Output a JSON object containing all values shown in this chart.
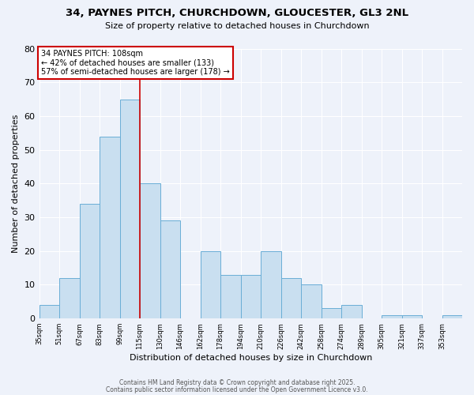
{
  "title": "34, PAYNES PITCH, CHURCHDOWN, GLOUCESTER, GL3 2NL",
  "subtitle": "Size of property relative to detached houses in Churchdown",
  "xlabel": "Distribution of detached houses by size in Churchdown",
  "ylabel": "Number of detached properties",
  "footer_line1": "Contains HM Land Registry data © Crown copyright and database right 2025.",
  "footer_line2": "Contains public sector information licensed under the Open Government Licence v3.0.",
  "bin_labels": [
    "35sqm",
    "51sqm",
    "67sqm",
    "83sqm",
    "99sqm",
    "115sqm",
    "130sqm",
    "146sqm",
    "162sqm",
    "178sqm",
    "194sqm",
    "210sqm",
    "226sqm",
    "242sqm",
    "258sqm",
    "274sqm",
    "289sqm",
    "305sqm",
    "321sqm",
    "337sqm",
    "353sqm"
  ],
  "bar_values": [
    4,
    12,
    34,
    54,
    65,
    40,
    29,
    0,
    20,
    13,
    13,
    20,
    12,
    10,
    3,
    4,
    0,
    1,
    1,
    0,
    1
  ],
  "bar_color": "#c9dff0",
  "bar_edge_color": "#6aaed6",
  "background_color": "#eef2fa",
  "grid_color": "#ffffff",
  "vline_x": 5,
  "vline_color": "#cc0000",
  "annotation_title": "34 PAYNES PITCH: 108sqm",
  "annotation_line1": "← 42% of detached houses are smaller (133)",
  "annotation_line2": "57% of semi-detached houses are larger (178) →",
  "annotation_box_color": "#ffffff",
  "annotation_box_edge": "#cc0000",
  "ylim": [
    0,
    80
  ],
  "yticks": [
    0,
    10,
    20,
    30,
    40,
    50,
    60,
    70,
    80
  ]
}
